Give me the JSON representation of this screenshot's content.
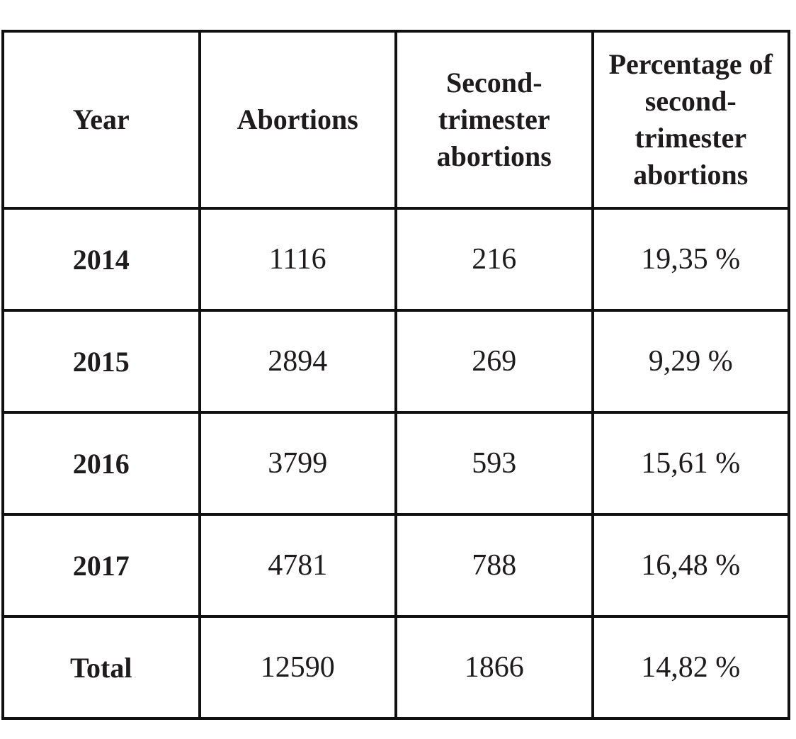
{
  "table": {
    "headers": [
      "Year",
      "Abortions",
      "Second-trimester abortions",
      "Percentage of second-trimester abortions"
    ],
    "rows": [
      [
        "2014",
        "1116",
        "216",
        "19,35 %"
      ],
      [
        "2015",
        "2894",
        "269",
        "9,29 %"
      ],
      [
        "2016",
        "3799",
        "593",
        "15,61 %"
      ],
      [
        "2017",
        "4781",
        "788",
        "16,48 %"
      ],
      [
        "Total",
        "12590",
        "1866",
        "14,82 %"
      ]
    ]
  },
  "colors": {
    "border": "#101010",
    "text": "#1e1b1c",
    "background": "#ffffff"
  }
}
